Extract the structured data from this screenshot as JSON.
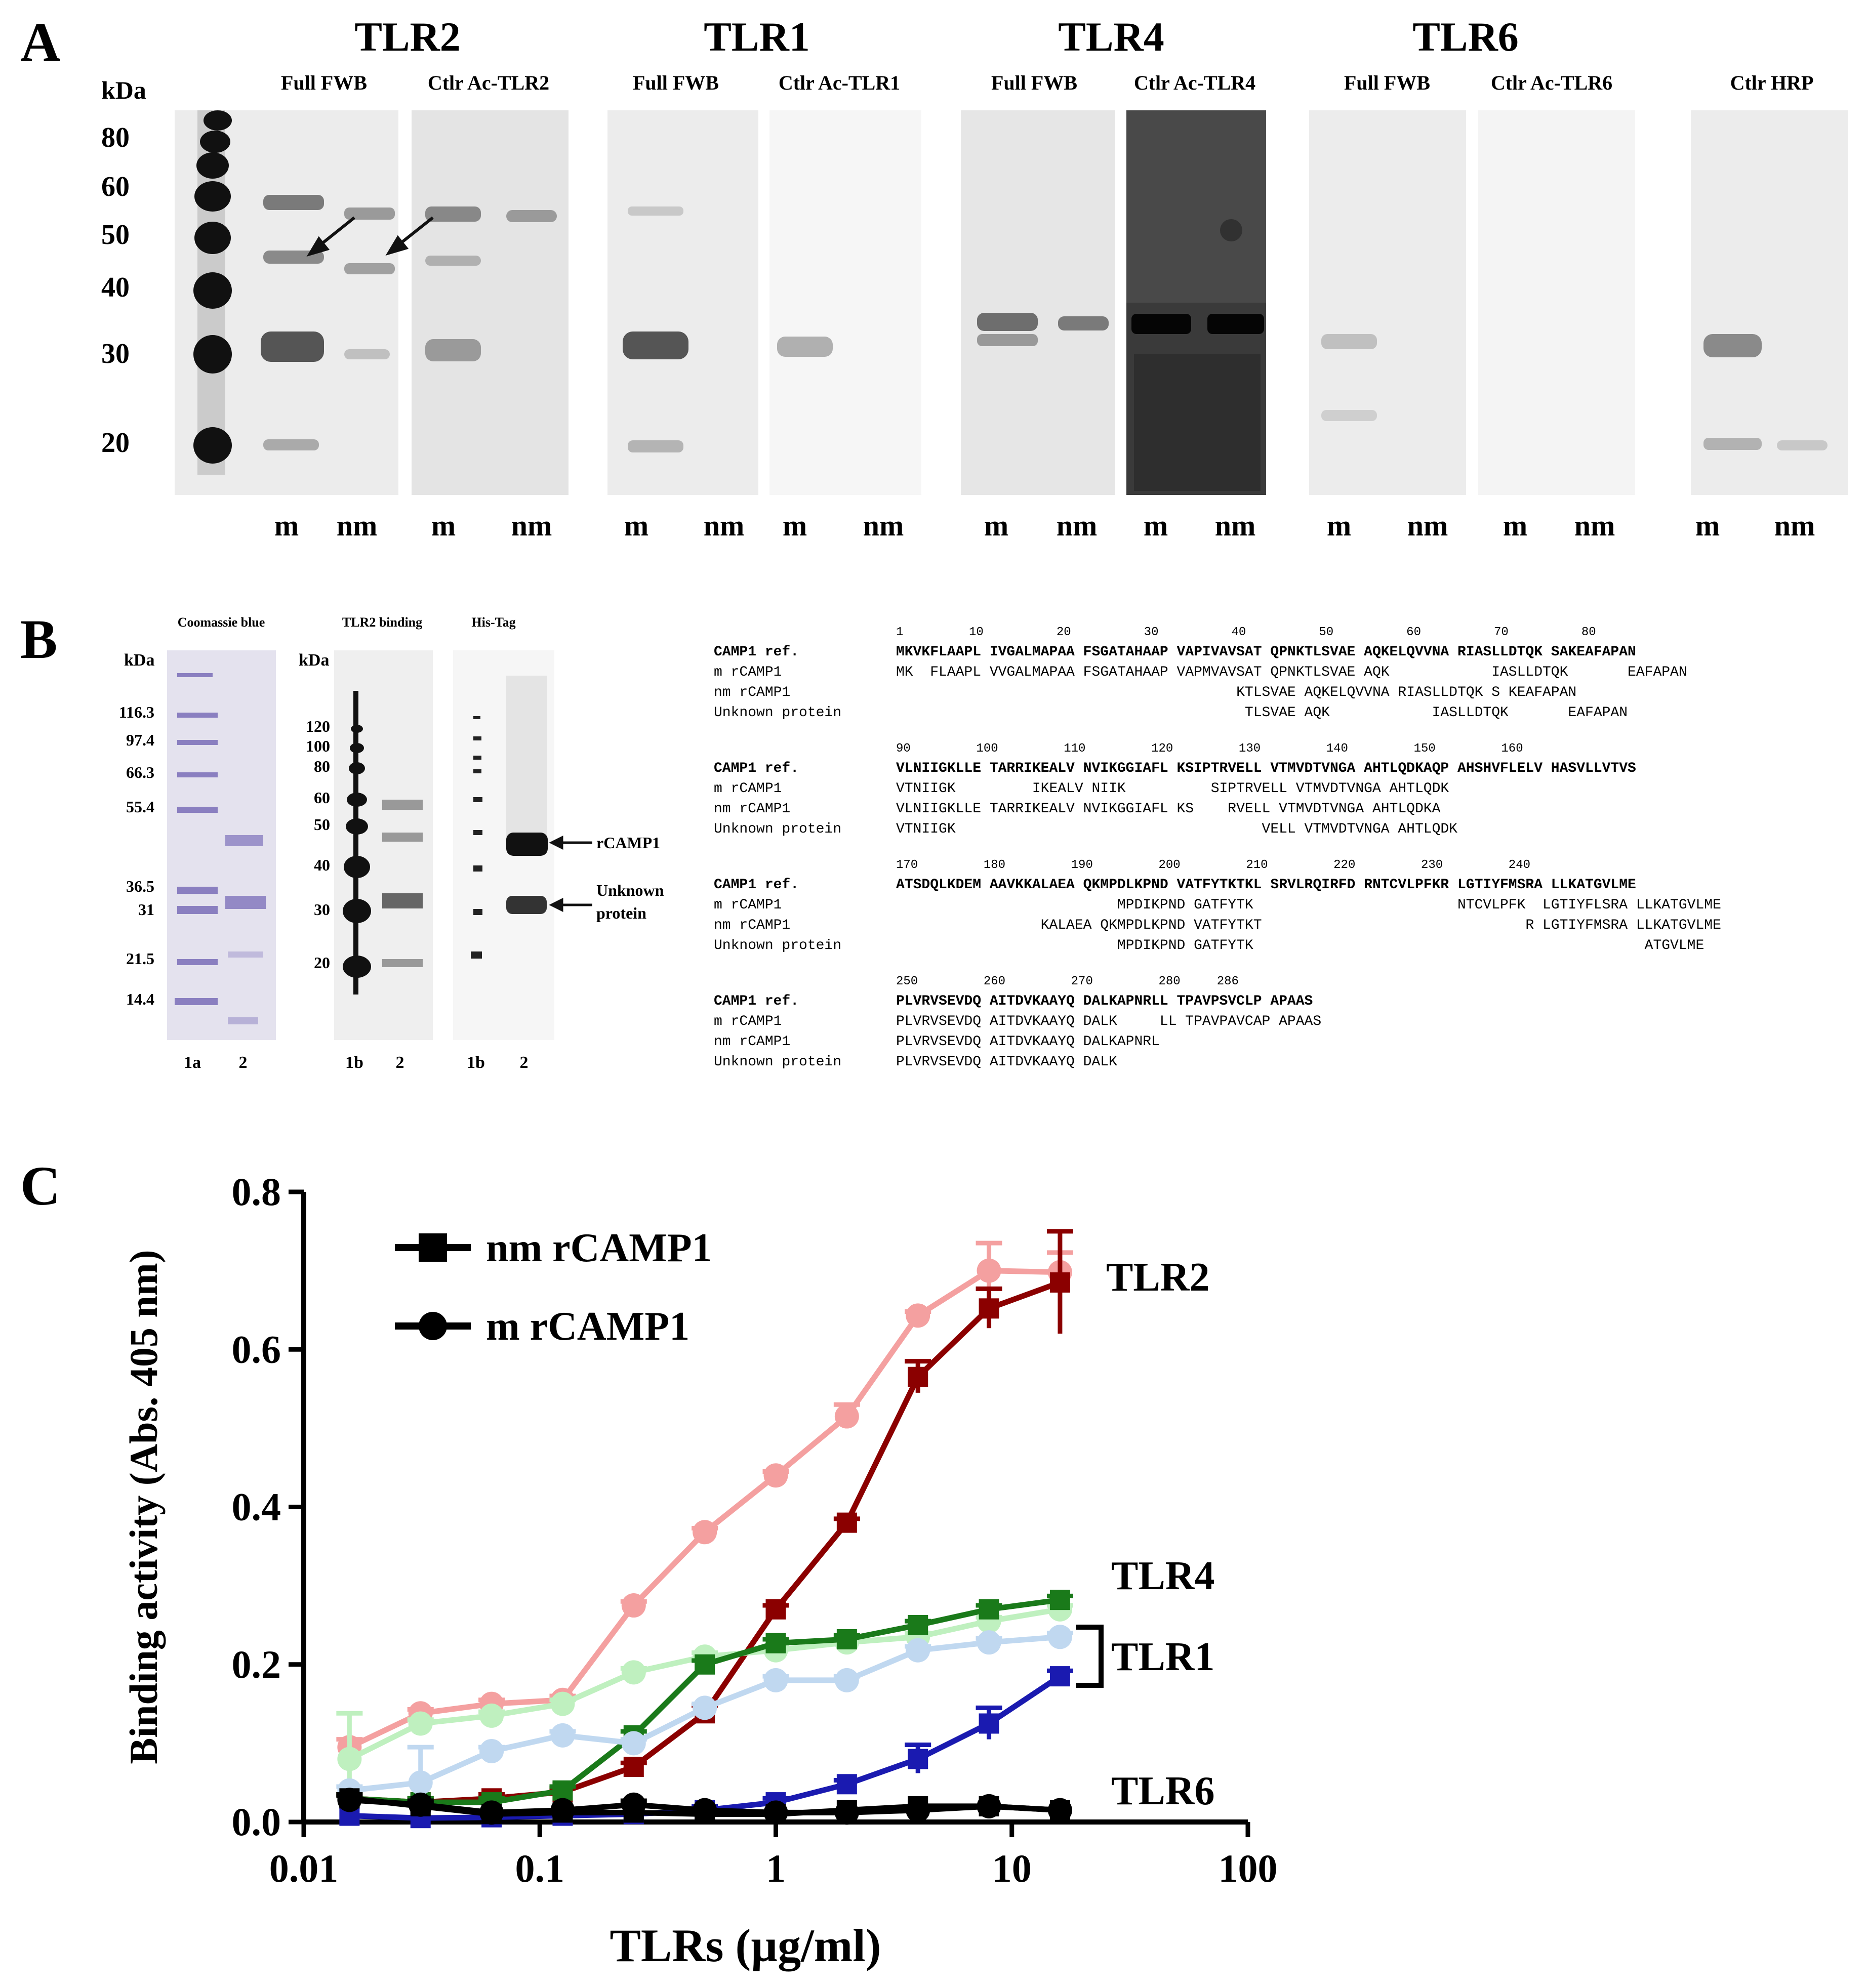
{
  "panel_a": {
    "letter": "A",
    "kda": "kDa",
    "markers": [
      "80",
      "60",
      "50",
      "40",
      "30",
      "20"
    ],
    "groups": [
      {
        "title": "TLR2",
        "sub1": "Full FWB",
        "sub2": "Ctlr Ac-TLR2"
      },
      {
        "title": "TLR1",
        "sub1": "Full FWB",
        "sub2": "Ctlr Ac-TLR1"
      },
      {
        "title": "TLR4",
        "sub1": "Full FWB",
        "sub2": "Ctlr Ac-TLR4"
      },
      {
        "title": "TLR6",
        "sub1": "Full FWB",
        "sub2": "Ctlr Ac-TLR6"
      }
    ],
    "hrp_label": "Ctlr HRP",
    "lane_labels": [
      "m",
      "nm"
    ]
  },
  "panel_b": {
    "letter": "B",
    "gel_titles": [
      "Coomassie blue",
      "TLR2 binding",
      "His-Tag"
    ],
    "kda": "kDa",
    "coomassie_markers": [
      "116.3",
      "97.4",
      "66.3",
      "55.4",
      "36.5",
      "31",
      "21.5",
      "14.4"
    ],
    "tlr2_markers": [
      "120",
      "100",
      "80",
      "60",
      "50",
      "40",
      "30",
      "20"
    ],
    "lanes": [
      [
        "1a",
        "2"
      ],
      [
        "1b",
        "2"
      ],
      [
        "1b",
        "2"
      ]
    ],
    "arrow_rcamp1": "rCAMP1",
    "arrow_unknown_1": "Unknown",
    "arrow_unknown_2": "protein",
    "alignment": [
      {
        "nums": "1         10          20          30          40          50          60          70          80",
        "rows": [
          {
            "label": "CAMP1 ref.",
            "seq": "MKVKFLAAPL IVGALMAPAA FSGATAHAAP VAPIVAVSAT QPNKTLSVAE AQKELQVVNA RIASLLDTQK SAKEAFAPAN"
          },
          {
            "label": "m rCAMP1",
            "seq": "MK  FLAAPL VVGALMAPAA FSGATAHAAP VAPMVAVSAT QPNKTLSVAE AQK            IASLLDTQK       EAFAPAN"
          },
          {
            "label": "nm rCAMP1",
            "seq": "                                        KTLSVAE AQKELQVVNA RIASLLDTQK S KEAFAPAN"
          },
          {
            "label": "Unknown protein",
            "seq": "                                         TLSVAE AQK            IASLLDTQK       EAFAPAN"
          }
        ]
      },
      {
        "nums": "90         100         110         120         130         140         150         160",
        "rows": [
          {
            "label": "CAMP1 ref.",
            "seq": "VLNIIGKLLE TARRIKEALV NVIKGGIAFL KSIPTRVELL VTMVDTVNGA AHTLQDKAQP AHSHVFLELV HASVLLVTVS"
          },
          {
            "label": "m rCAMP1",
            "seq": "VTNIIGK         IKEALV NIIK          SIPTRVELL VTMVDTVNGA AHTLQDK"
          },
          {
            "label": "nm rCAMP1",
            "seq": "VLNIIGKLLE TARRIKEALV NVIKGGIAFL KS    RVELL VTMVDTVNGA AHTLQDKA"
          },
          {
            "label": "Unknown protein",
            "seq": "VTNIIGK                                    VELL VTMVDTVNGA AHTLQDK"
          }
        ]
      },
      {
        "nums": "170         180         190         200         210         220         230         240",
        "rows": [
          {
            "label": "CAMP1 ref.",
            "seq": "ATSDQLKDEM AAVKKALAEA QKMPDLKPND VATFYTKTKL SRVLRQIRFD RNTCVLPFKR LGTIYFMSRA LLKATGVLME"
          },
          {
            "label": "m rCAMP1",
            "seq": "                          MPDIKPND GATFYTK                        NTCVLPFK  LGTIYFLSRA LLKATGVLME"
          },
          {
            "label": "nm rCAMP1",
            "seq": "                 KALAEA QKMPDLKPND VATFYTKT                               R LGTIYFMSRA LLKATGVLME"
          },
          {
            "label": "Unknown protein",
            "seq": "                          MPDIKPND GATFYTK                                              ATGVLME"
          }
        ]
      },
      {
        "nums": "250         260         270         280     286",
        "rows": [
          {
            "label": "CAMP1 ref.",
            "seq": "PLVRVSEVDQ AITDVKAAYQ DALKAPNRLL TPAVPSVCLP APAAS"
          },
          {
            "label": "m rCAMP1",
            "seq": "PLVRVSEVDQ AITDVKAAYQ DALK     LL TPAVPAVCAP APAAS"
          },
          {
            "label": "nm rCAMP1",
            "seq": "PLVRVSEVDQ AITDVKAAYQ DALKAPNRL"
          },
          {
            "label": "Unknown protein",
            "seq": "PLVRVSEVDQ AITDVKAAYQ DALK"
          }
        ]
      }
    ]
  },
  "panel_c": {
    "letter": "C",
    "chart_data": {
      "type": "line",
      "title": "",
      "xlabel": "TLRs (µg/ml)",
      "ylabel": "Binding activity (Abs. 405 nm)",
      "xscale": "log",
      "xlim": [
        0.01,
        100
      ],
      "ylim": [
        0,
        0.8
      ],
      "xticks": [
        "0.01",
        "0.1",
        "1",
        "10",
        "100"
      ],
      "yticks": [
        "0.0",
        "0.2",
        "0.4",
        "0.6",
        "0.8"
      ],
      "legend": [
        {
          "label": "nm rCAMP1",
          "marker": "square"
        },
        {
          "label": "m rCAMP1",
          "marker": "circle"
        }
      ],
      "right_labels": [
        "TLR2",
        "TLR4",
        "TLR1",
        "TLR6"
      ],
      "x": [
        0.015625,
        0.03125,
        0.0625,
        0.125,
        0.25,
        0.5,
        1,
        2,
        4,
        8,
        16
      ],
      "series": [
        {
          "name": "TLR2 m rCAMP1",
          "color": "#f4a0a0",
          "marker": "circle",
          "values": [
            0.095,
            0.138,
            0.15,
            0.155,
            0.275,
            0.368,
            0.44,
            0.515,
            0.643,
            0.7,
            0.698
          ],
          "errors": [
            0.01,
            0.005,
            0.005,
            0.005,
            0.005,
            0.005,
            0.005,
            0.015,
            0.005,
            0.035,
            0.025
          ]
        },
        {
          "name": "TLR2 nm rCAMP1",
          "color": "#8b0000",
          "marker": "square",
          "values": [
            0.03,
            0.025,
            0.03,
            0.038,
            0.07,
            0.138,
            0.27,
            0.38,
            0.565,
            0.652,
            0.685
          ],
          "errors": [
            0.005,
            0.005,
            0.005,
            0.005,
            0.005,
            0.01,
            0.005,
            0.005,
            0.02,
            0.025,
            0.065
          ]
        },
        {
          "name": "TLR4 m rCAMP1",
          "color": "#bff0bf",
          "marker": "circle",
          "values": [
            0.08,
            0.125,
            0.135,
            0.15,
            0.19,
            0.21,
            0.218,
            0.228,
            0.235,
            0.255,
            0.27
          ],
          "errors": [
            0.058,
            0.005,
            0.005,
            0.005,
            0.005,
            0.005,
            0.005,
            0.005,
            0.005,
            0.005,
            0.005
          ]
        },
        {
          "name": "TLR4 nm rCAMP1",
          "color": "#1a7a1a",
          "marker": "square",
          "values": [
            0.03,
            0.025,
            0.025,
            0.04,
            0.11,
            0.2,
            0.227,
            0.232,
            0.25,
            0.27,
            0.282
          ],
          "errors": [
            0.005,
            0.005,
            0.005,
            0.005,
            0.005,
            0.005,
            0.005,
            0.005,
            0.005,
            0.005,
            0.005
          ]
        },
        {
          "name": "TLR1 m rCAMP1",
          "color": "#c0d8f0",
          "marker": "circle",
          "values": [
            0.04,
            0.05,
            0.09,
            0.11,
            0.1,
            0.145,
            0.18,
            0.18,
            0.218,
            0.228,
            0.235
          ],
          "errors": [
            0.005,
            0.045,
            0.005,
            0.005,
            0.005,
            0.005,
            0.005,
            0.005,
            0.005,
            0.005,
            0.005
          ]
        },
        {
          "name": "TLR1 nm rCAMP1",
          "color": "#1a1ab0",
          "marker": "square",
          "values": [
            0.008,
            0.005,
            0.006,
            0.008,
            0.01,
            0.015,
            0.025,
            0.048,
            0.08,
            0.125,
            0.185
          ],
          "errors": [
            0.003,
            0.003,
            0.003,
            0.003,
            0.003,
            0.005,
            0.005,
            0.005,
            0.018,
            0.02,
            0.007
          ]
        },
        {
          "name": "TLR6 m rCAMP1",
          "color": "#000000",
          "marker": "circle",
          "values": [
            0.028,
            0.022,
            0.012,
            0.015,
            0.022,
            0.015,
            0.012,
            0.012,
            0.015,
            0.02,
            0.015
          ],
          "errors": [
            0.005,
            0.005,
            0.003,
            0.003,
            0.005,
            0.003,
            0.003,
            0.003,
            0.003,
            0.003,
            0.003
          ]
        },
        {
          "name": "TLR6 nm rCAMP1",
          "color": "#000000",
          "marker": "square",
          "values": [
            0.03,
            0.02,
            0.01,
            0.012,
            0.012,
            0.01,
            0.01,
            0.015,
            0.02,
            0.02,
            0.015
          ],
          "errors": [
            0.005,
            0.005,
            0.003,
            0.003,
            0.003,
            0.003,
            0.003,
            0.003,
            0.003,
            0.003,
            0.003
          ]
        }
      ]
    }
  }
}
